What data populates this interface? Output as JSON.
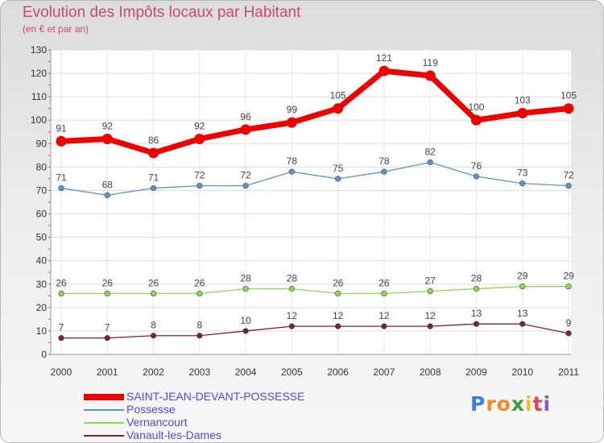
{
  "title": "Evolution des Impôts locaux par Habitant",
  "subtitle": "(en € et par an)",
  "logo": {
    "letters": [
      {
        "ch": "P",
        "color": "#3d7fd0"
      },
      {
        "ch": "r",
        "color": "#f08a2c"
      },
      {
        "ch": "o",
        "color": "#f08a2c"
      },
      {
        "ch": "x",
        "color": "#3b9a3b"
      },
      {
        "ch": "i",
        "color": "#f0c020"
      },
      {
        "ch": "t",
        "color": "#d44a5a"
      },
      {
        "ch": "i",
        "color": "#8a5ac0"
      }
    ]
  },
  "chart_data": {
    "type": "line",
    "title": "Evolution des Impôts locaux par Habitant",
    "subtitle": "(en € et par an)",
    "x": [
      2000,
      2001,
      2002,
      2003,
      2004,
      2005,
      2006,
      2007,
      2008,
      2009,
      2010,
      2011
    ],
    "ylim": [
      0,
      130
    ],
    "yticks": [
      0,
      10,
      20,
      30,
      40,
      50,
      60,
      70,
      80,
      90,
      100,
      110,
      120,
      130
    ],
    "grid": true,
    "legend_position": "bottom-left",
    "series": [
      {
        "name": "SAINT-JEAN-DEVANT-POSSESSE",
        "color": "#ee0000",
        "values": [
          91,
          92,
          86,
          92,
          96,
          99,
          105,
          121,
          119,
          100,
          103,
          105
        ]
      },
      {
        "name": "Possesse",
        "color": "#5b96c8",
        "values": [
          71,
          68,
          71,
          72,
          72,
          78,
          75,
          78,
          82,
          76,
          73,
          72
        ]
      },
      {
        "name": "Vernancourt",
        "color": "#8fd94f",
        "values": [
          26,
          26,
          26,
          26,
          28,
          28,
          26,
          26,
          27,
          28,
          29,
          29
        ]
      },
      {
        "name": "Vanault-les-Dames",
        "color": "#7a2525",
        "values": [
          7,
          7,
          8,
          8,
          10,
          12,
          12,
          12,
          12,
          13,
          13,
          9
        ]
      }
    ]
  }
}
